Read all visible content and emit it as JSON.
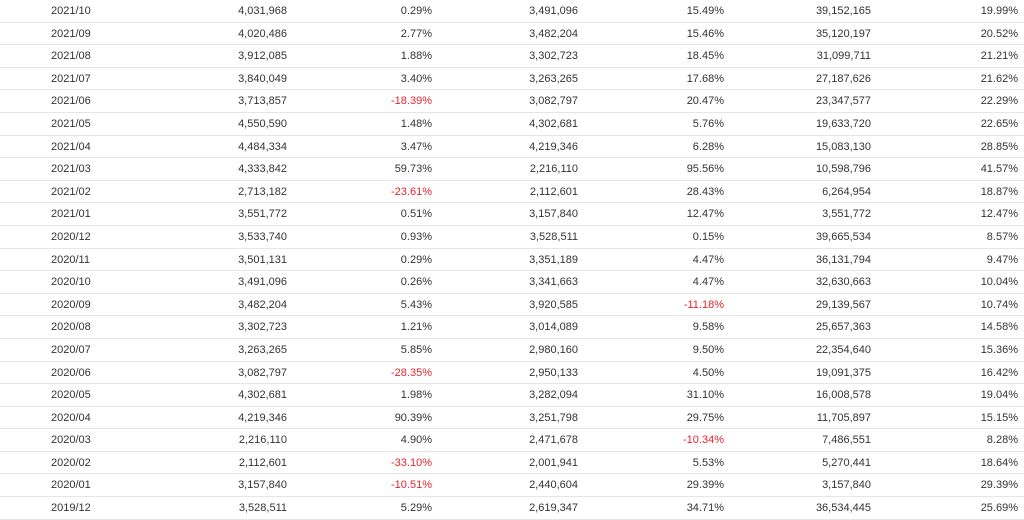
{
  "colors": {
    "text": "#333333",
    "negative": "#e8232d",
    "divider": "#e6e6e6"
  },
  "rows": [
    [
      "2021/10",
      "4,031,968",
      "0.29%",
      "3,491,096",
      "15.49%",
      "39,152,165",
      "19.99%"
    ],
    [
      "2021/09",
      "4,020,486",
      "2.77%",
      "3,482,204",
      "15.46%",
      "35,120,197",
      "20.52%"
    ],
    [
      "2021/08",
      "3,912,085",
      "1.88%",
      "3,302,723",
      "18.45%",
      "31,099,711",
      "21.21%"
    ],
    [
      "2021/07",
      "3,840,049",
      "3.40%",
      "3,263,265",
      "17.68%",
      "27,187,626",
      "21.62%"
    ],
    [
      "2021/06",
      "3,713,857",
      "-18.39%",
      "3,082,797",
      "20.47%",
      "23,347,577",
      "22.29%"
    ],
    [
      "2021/05",
      "4,550,590",
      "1.48%",
      "4,302,681",
      "5.76%",
      "19,633,720",
      "22.65%"
    ],
    [
      "2021/04",
      "4,484,334",
      "3.47%",
      "4,219,346",
      "6.28%",
      "15,083,130",
      "28.85%"
    ],
    [
      "2021/03",
      "4,333,842",
      "59.73%",
      "2,216,110",
      "95.56%",
      "10,598,796",
      "41.57%"
    ],
    [
      "2021/02",
      "2,713,182",
      "-23.61%",
      "2,112,601",
      "28.43%",
      "6,264,954",
      "18.87%"
    ],
    [
      "2021/01",
      "3,551,772",
      "0.51%",
      "3,157,840",
      "12.47%",
      "3,551,772",
      "12.47%"
    ],
    [
      "2020/12",
      "3,533,740",
      "0.93%",
      "3,528,511",
      "0.15%",
      "39,665,534",
      "8.57%"
    ],
    [
      "2020/11",
      "3,501,131",
      "0.29%",
      "3,351,189",
      "4.47%",
      "36,131,794",
      "9.47%"
    ],
    [
      "2020/10",
      "3,491,096",
      "0.26%",
      "3,341,663",
      "4.47%",
      "32,630,663",
      "10.04%"
    ],
    [
      "2020/09",
      "3,482,204",
      "5.43%",
      "3,920,585",
      "-11.18%",
      "29,139,567",
      "10.74%"
    ],
    [
      "2020/08",
      "3,302,723",
      "1.21%",
      "3,014,089",
      "9.58%",
      "25,657,363",
      "14.58%"
    ],
    [
      "2020/07",
      "3,263,265",
      "5.85%",
      "2,980,160",
      "9.50%",
      "22,354,640",
      "15.36%"
    ],
    [
      "2020/06",
      "3,082,797",
      "-28.35%",
      "2,950,133",
      "4.50%",
      "19,091,375",
      "16.42%"
    ],
    [
      "2020/05",
      "4,302,681",
      "1.98%",
      "3,282,094",
      "31.10%",
      "16,008,578",
      "19.04%"
    ],
    [
      "2020/04",
      "4,219,346",
      "90.39%",
      "3,251,798",
      "29.75%",
      "11,705,897",
      "15.15%"
    ],
    [
      "2020/03",
      "2,216,110",
      "4.90%",
      "2,471,678",
      "-10.34%",
      "7,486,551",
      "8.28%"
    ],
    [
      "2020/02",
      "2,112,601",
      "-33.10%",
      "2,001,941",
      "5.53%",
      "5,270,441",
      "18.64%"
    ],
    [
      "2020/01",
      "3,157,840",
      "-10.51%",
      "2,440,604",
      "29.39%",
      "3,157,840",
      "29.39%"
    ],
    [
      "2019/12",
      "3,528,511",
      "5.29%",
      "2,619,347",
      "34.71%",
      "36,534,445",
      "25.69%"
    ]
  ]
}
